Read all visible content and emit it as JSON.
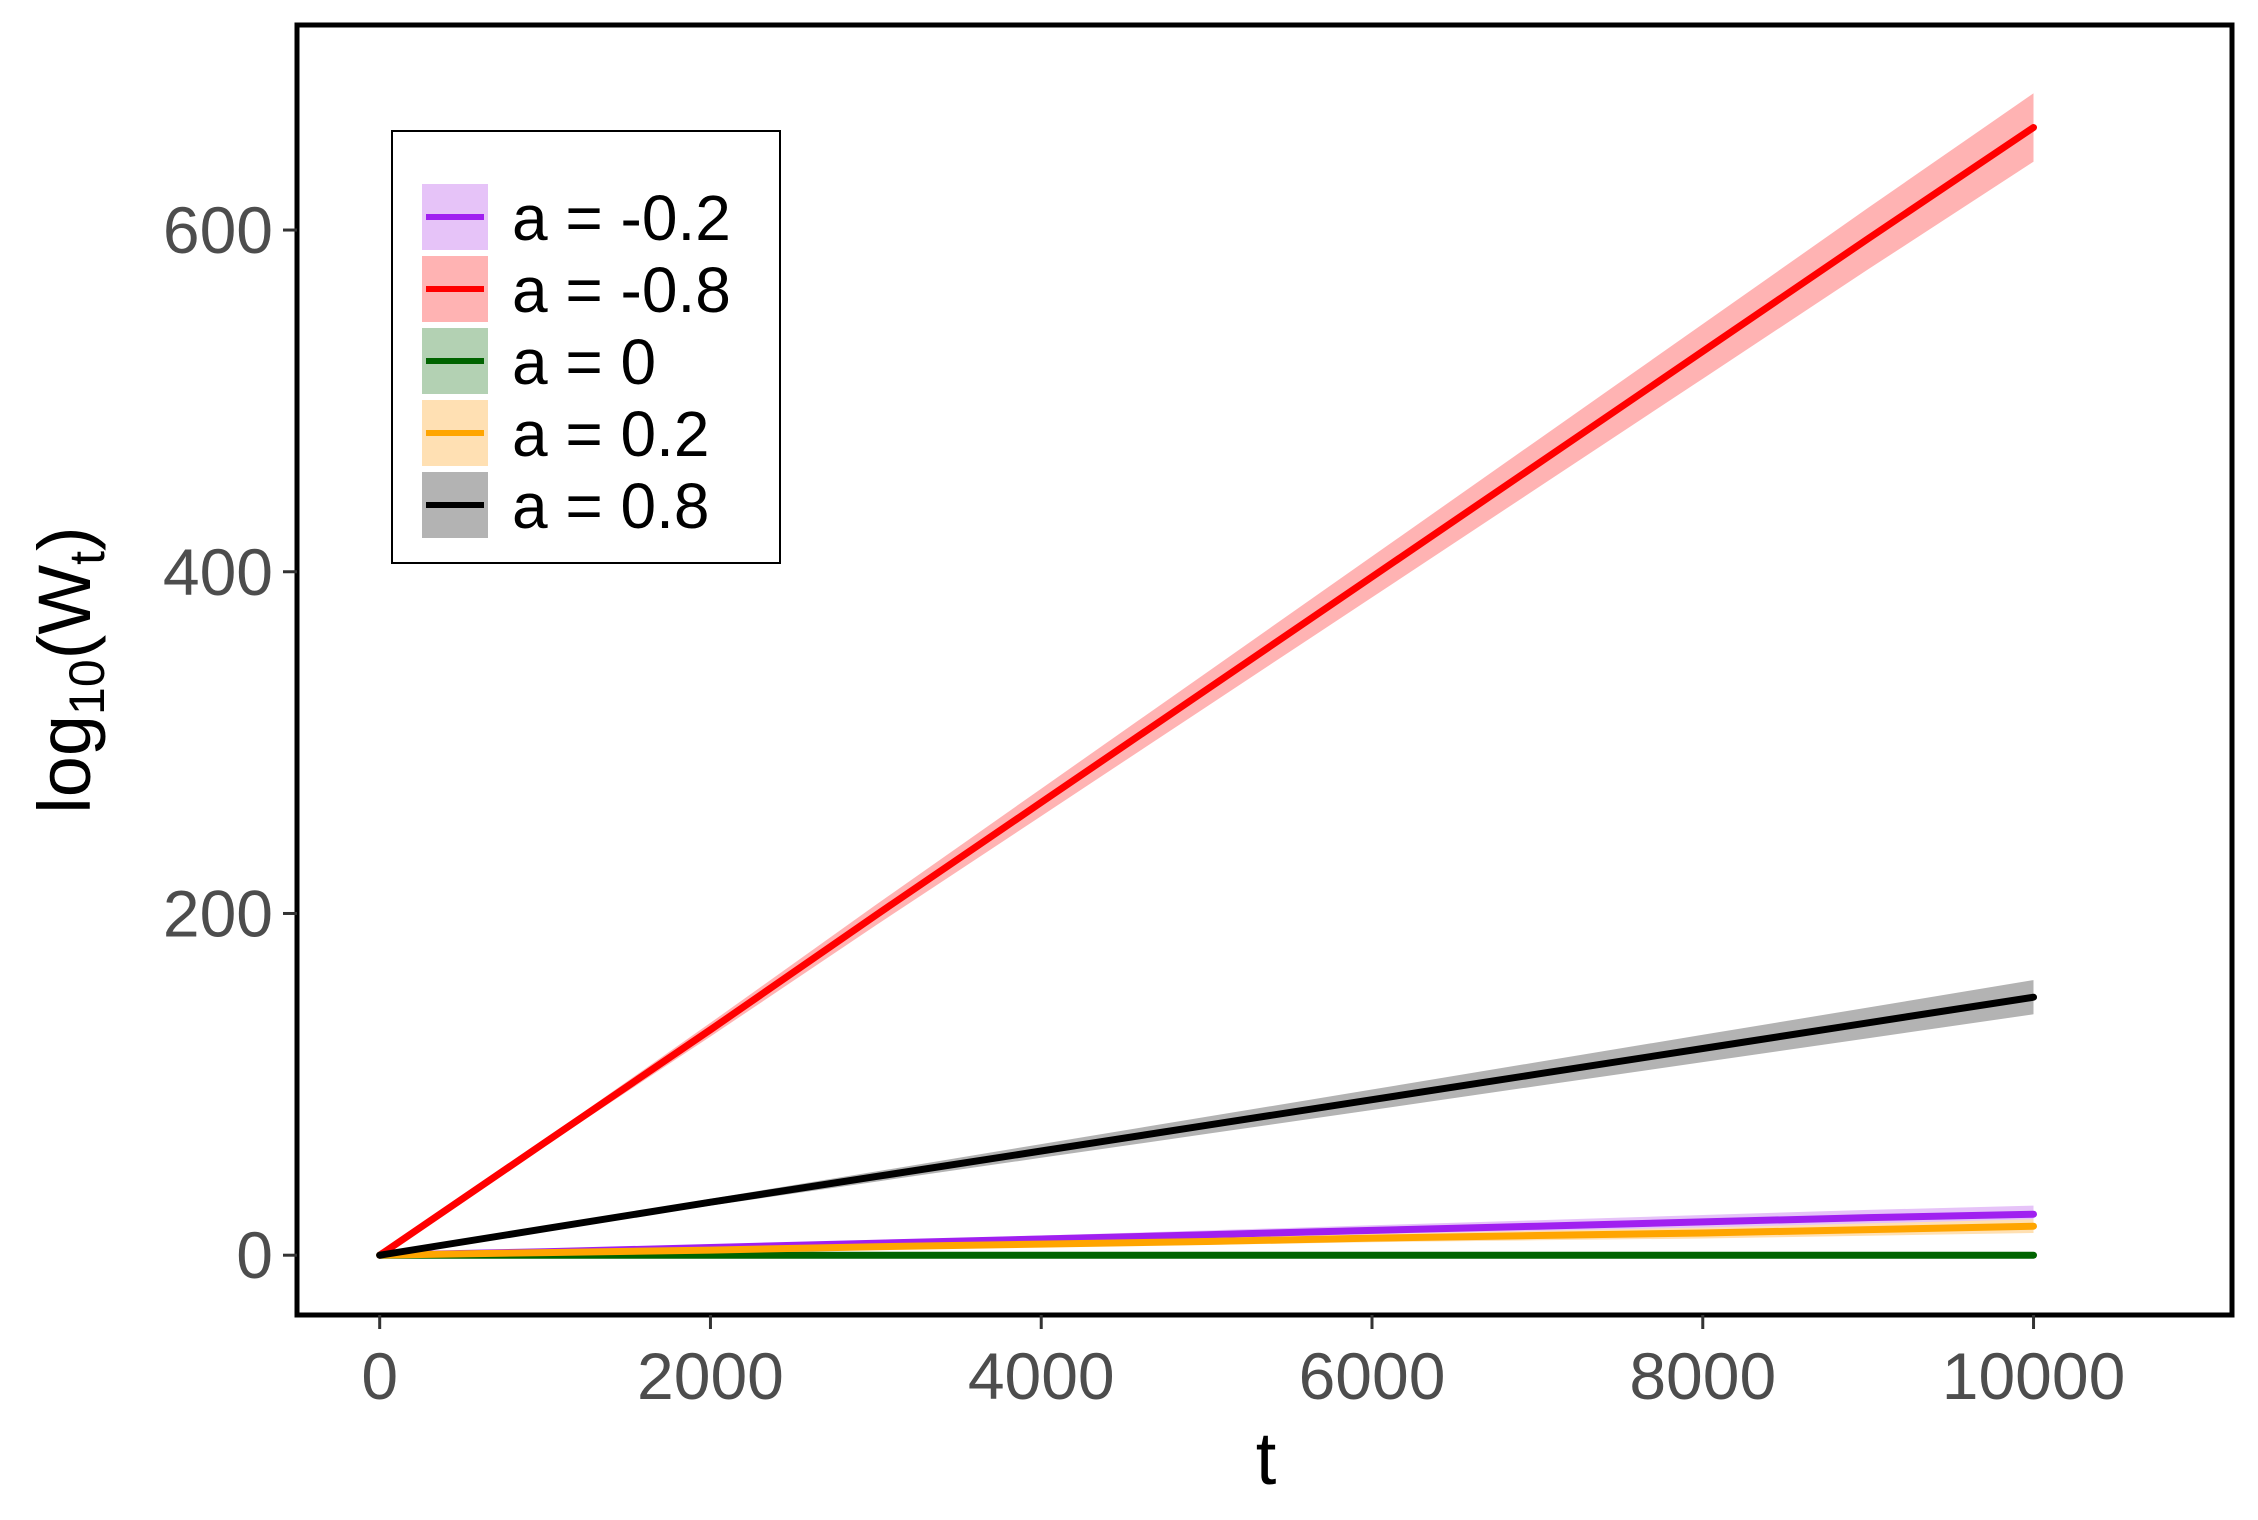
{
  "chart_data": {
    "type": "line",
    "xlabel": "t",
    "ylabel": {
      "base": "log",
      "sub": "10",
      "open": "(W",
      "sub2": "t",
      "close": ")"
    },
    "xlim": [
      -500,
      11200
    ],
    "ylim": [
      -35,
      720
    ],
    "x_ticks": [
      0,
      2000,
      4000,
      6000,
      8000,
      10000
    ],
    "x_tick_labels": [
      "0",
      "2000",
      "4000",
      "6000",
      "8000",
      "10000"
    ],
    "y_ticks": [
      0,
      200,
      400,
      600
    ],
    "y_tick_labels": [
      "0",
      "200",
      "400",
      "600"
    ],
    "grid": false,
    "legend_position": "top-left",
    "x": [
      0,
      1000,
      2000,
      3000,
      4000,
      5000,
      6000,
      7000,
      8000,
      9000,
      10000
    ],
    "series": [
      {
        "name": "a = -0.2",
        "color": "#a020f0",
        "band_color": "#e6c3f8",
        "values": [
          0,
          2,
          4.5,
          7,
          9.5,
          12,
          14.5,
          17,
          19.5,
          22,
          24
        ],
        "band": [
          0,
          0.5,
          1,
          1.5,
          2,
          2.5,
          3,
          3.5,
          4,
          4.5,
          5
        ]
      },
      {
        "name": "a = -0.8",
        "color": "#ff0000",
        "band_color": "#ffb3b3",
        "values": [
          0,
          66,
          132,
          199,
          265,
          331,
          397,
          463,
          529,
          595,
          660
        ],
        "band": [
          0,
          2,
          4,
          6,
          8,
          10,
          12,
          14,
          16,
          18,
          20
        ]
      },
      {
        "name": "a = 0",
        "color": "#006400",
        "band_color": "#b3d1b3",
        "values": [
          0,
          0,
          0,
          0,
          0,
          0,
          0,
          0,
          0,
          0,
          0
        ],
        "band": [
          0,
          0.3,
          0.3,
          0.3,
          0.3,
          0.3,
          0.3,
          0.3,
          0.3,
          0.3,
          0.3
        ]
      },
      {
        "name": "a = 0.2",
        "color": "#ffa500",
        "band_color": "#ffe0b3",
        "values": [
          0,
          1.5,
          3,
          5,
          6.5,
          8,
          10,
          11.5,
          13,
          15,
          17
        ],
        "band": [
          0,
          0.4,
          0.8,
          1.2,
          1.6,
          2,
          2.4,
          2.8,
          3.2,
          3.6,
          4
        ]
      },
      {
        "name": "a = 0.8",
        "color": "#000000",
        "band_color": "#b3b3b3",
        "values": [
          0,
          15.5,
          31,
          46,
          61,
          76,
          91,
          106,
          121,
          136,
          151
        ],
        "band": [
          0,
          1,
          2,
          3,
          4,
          5,
          6,
          7,
          8,
          9,
          10
        ]
      }
    ]
  }
}
